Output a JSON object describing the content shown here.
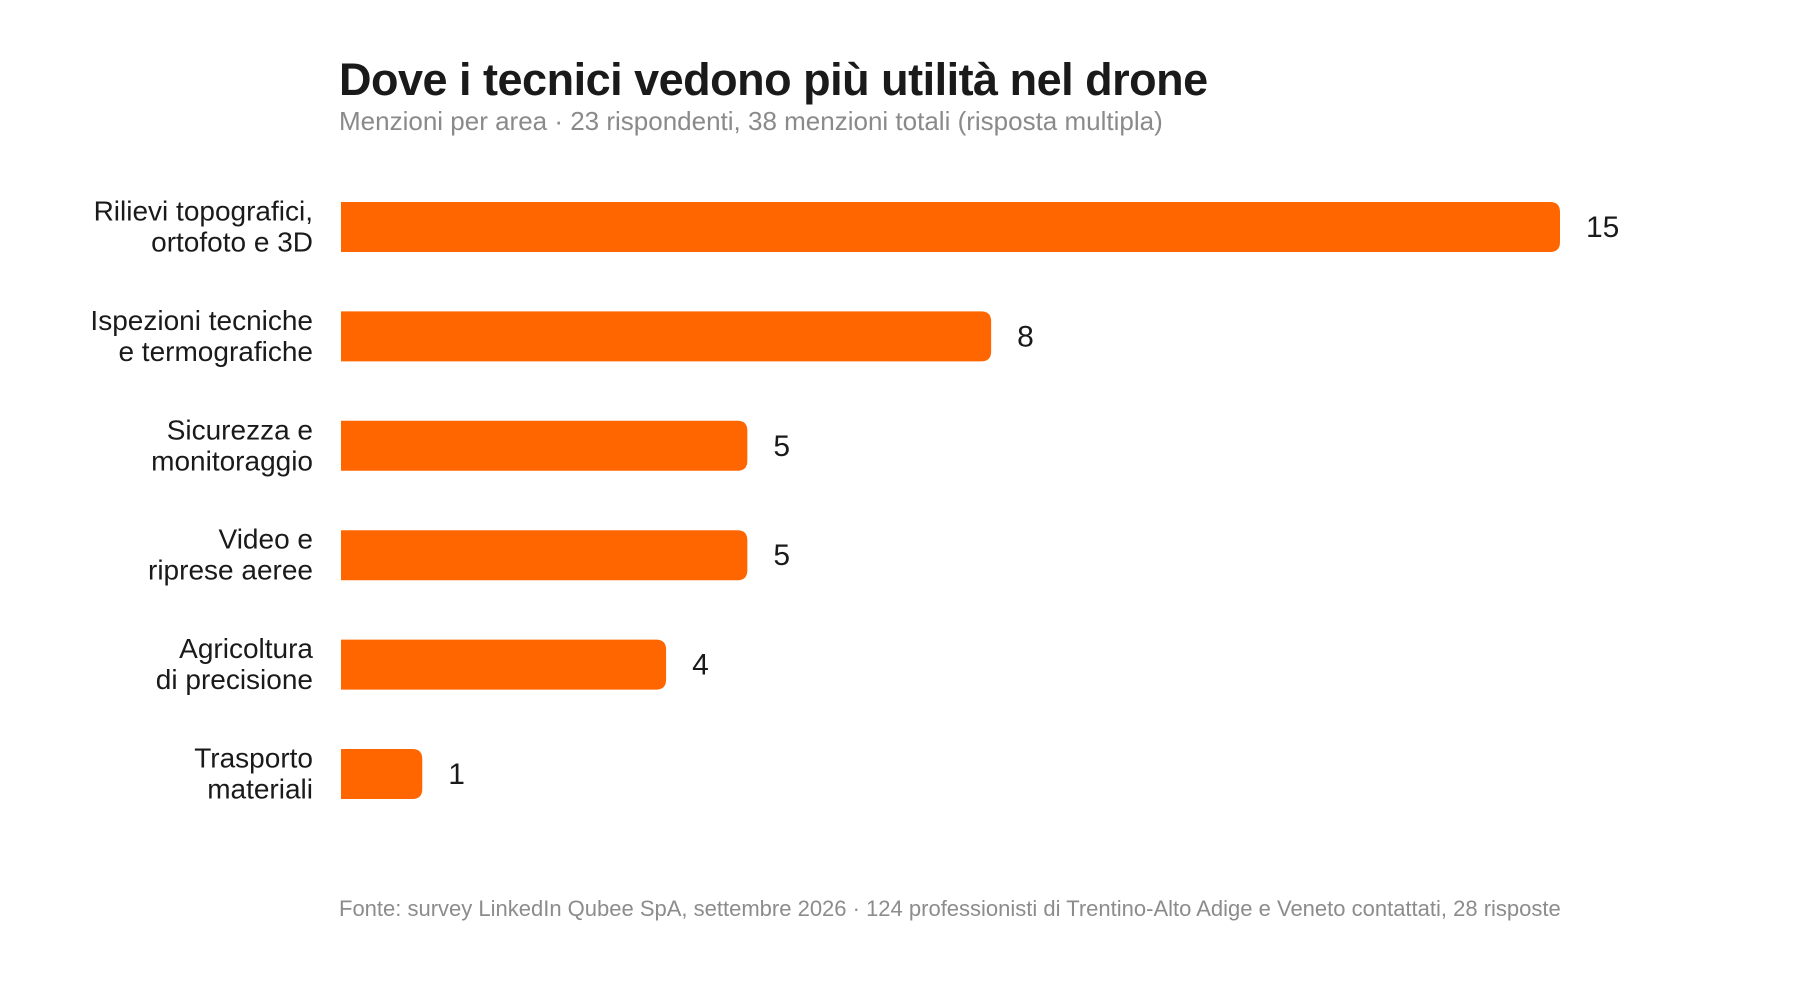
{
  "chart_data": {
    "type": "bar",
    "orientation": "horizontal",
    "title": "Dove i tecnici vedono più utilità nel drone",
    "subtitle": "Menzioni per area · 23 rispondenti, 38 menzioni totali (risposta multipla)",
    "categories": [
      [
        "Rilievi topografici,",
        "ortofoto e 3D"
      ],
      [
        "Ispezioni tecniche",
        "e termografiche"
      ],
      [
        "Sicurezza e",
        "monitoraggio"
      ],
      [
        "Video e",
        "riprese aeree"
      ],
      [
        "Agricoltura",
        "di precisione"
      ],
      [
        "Trasporto",
        "materiali"
      ]
    ],
    "values": [
      15,
      8,
      5,
      5,
      4,
      1
    ],
    "data_labels": [
      "15",
      "8",
      "5",
      "5",
      "4",
      "1"
    ],
    "xlim": [
      0,
      15
    ],
    "grid": false,
    "bar_color": "#ff6600",
    "source": "Fonte: survey LinkedIn Qubee SpA, settembre 2026 · 124 professionisti di Trentino-Alto Adige e Veneto contattati, 28 risposte"
  },
  "colors": {
    "bar": "#ff6600",
    "title": "#1a1a1a",
    "subtitle": "#8a8a8a",
    "label": "#1a1a1a",
    "source": "#8c8c8c"
  }
}
